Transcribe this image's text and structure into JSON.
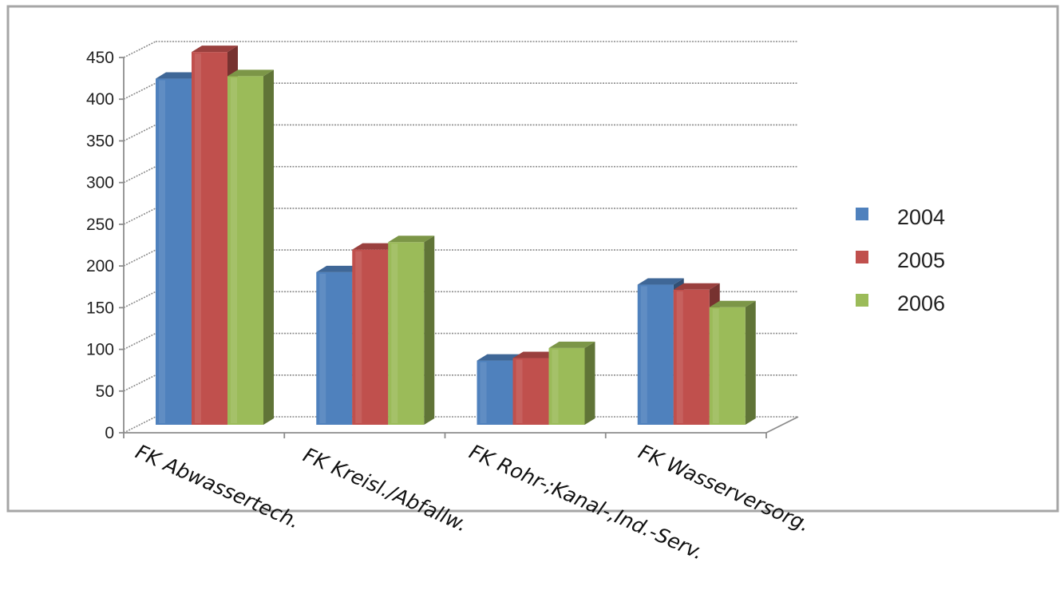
{
  "chart_data": {
    "type": "bar",
    "style": "3d-clustered-column",
    "title": "",
    "xlabel": "",
    "ylabel": "",
    "ylim": [
      0,
      450
    ],
    "yticks": [
      0,
      50,
      100,
      150,
      200,
      250,
      300,
      350,
      400,
      450
    ],
    "grid": true,
    "legend_position": "right",
    "categories": [
      "FK Abwassertech.",
      "FK Kreisl./Abfallw.",
      "FK Rohr-;Kanal-,Ind.-Serv.",
      "FK Wasserversorg."
    ],
    "series": [
      {
        "name": "2004",
        "color": "#4f81bd",
        "values": [
          415,
          183,
          77,
          168
        ]
      },
      {
        "name": "2005",
        "color": "#c0504d",
        "values": [
          447,
          210,
          80,
          162
        ]
      },
      {
        "name": "2006",
        "color": "#9bbb59",
        "values": [
          418,
          219,
          92,
          141
        ]
      }
    ]
  }
}
